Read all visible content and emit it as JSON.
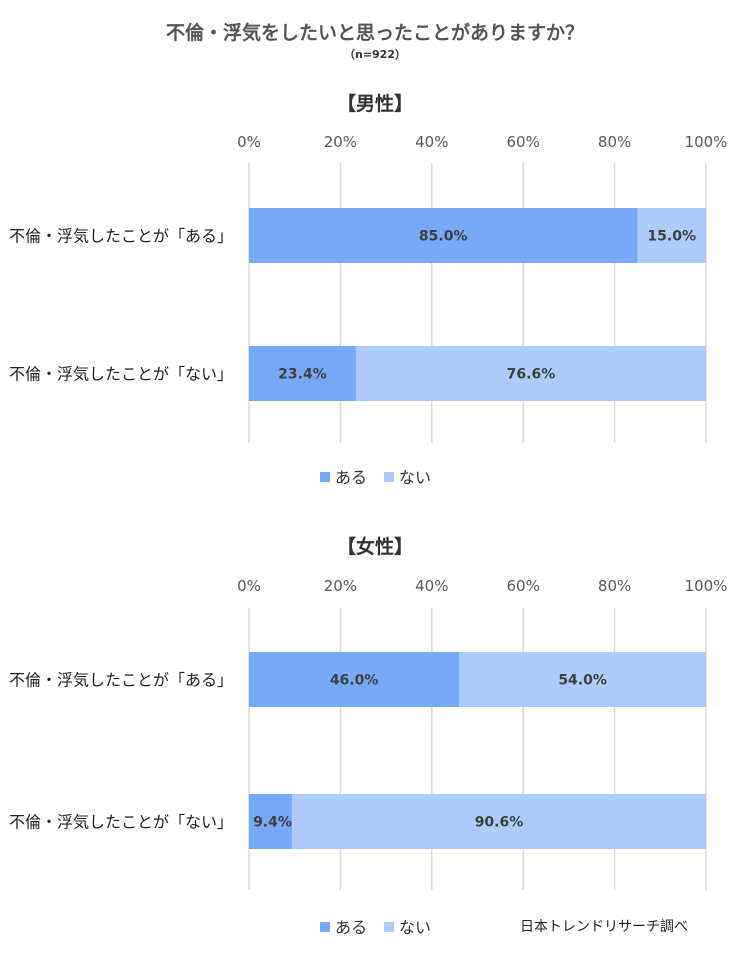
{
  "header": {
    "title": "不倫・浮気をしたいと思ったことがありますか？",
    "subtitle": "（n=922）"
  },
  "footer": {
    "credit": "日本トレンドリサーチ調べ"
  },
  "colors": {
    "aru": "#76a9f8",
    "nai": "#aecbfb",
    "grid": "#d9d9d9"
  },
  "chart_data": [
    {
      "type": "bar",
      "orientation": "horizontal",
      "stacked": "percent",
      "title": "【男性】",
      "categories": [
        "不倫・浮気したことが「ある」",
        "不倫・浮気したことが「ない」"
      ],
      "series": [
        {
          "name": "ある",
          "values": [
            85.0,
            23.4
          ],
          "labels": [
            "85.0%",
            "23.4%"
          ]
        },
        {
          "name": "ない",
          "values": [
            15.0,
            76.6
          ],
          "labels": [
            "15.0%",
            "76.6%"
          ]
        }
      ],
      "xlim": [
        0,
        100
      ],
      "xticks": [
        "0%",
        "20%",
        "40%",
        "60%",
        "80%",
        "100%"
      ],
      "grid": true,
      "legend": "bottom"
    },
    {
      "type": "bar",
      "orientation": "horizontal",
      "stacked": "percent",
      "title": "【女性】",
      "categories": [
        "不倫・浮気したことが「ある」",
        "不倫・浮気したことが「ない」"
      ],
      "series": [
        {
          "name": "ある",
          "values": [
            46.0,
            9.4
          ],
          "labels": [
            "46.0%",
            "9.4%"
          ]
        },
        {
          "name": "ない",
          "values": [
            54.0,
            90.6
          ],
          "labels": [
            "54.0%",
            "90.6%"
          ]
        }
      ],
      "xlim": [
        0,
        100
      ],
      "xticks": [
        "0%",
        "20%",
        "40%",
        "60%",
        "80%",
        "100%"
      ],
      "grid": true,
      "legend": "bottom"
    }
  ]
}
